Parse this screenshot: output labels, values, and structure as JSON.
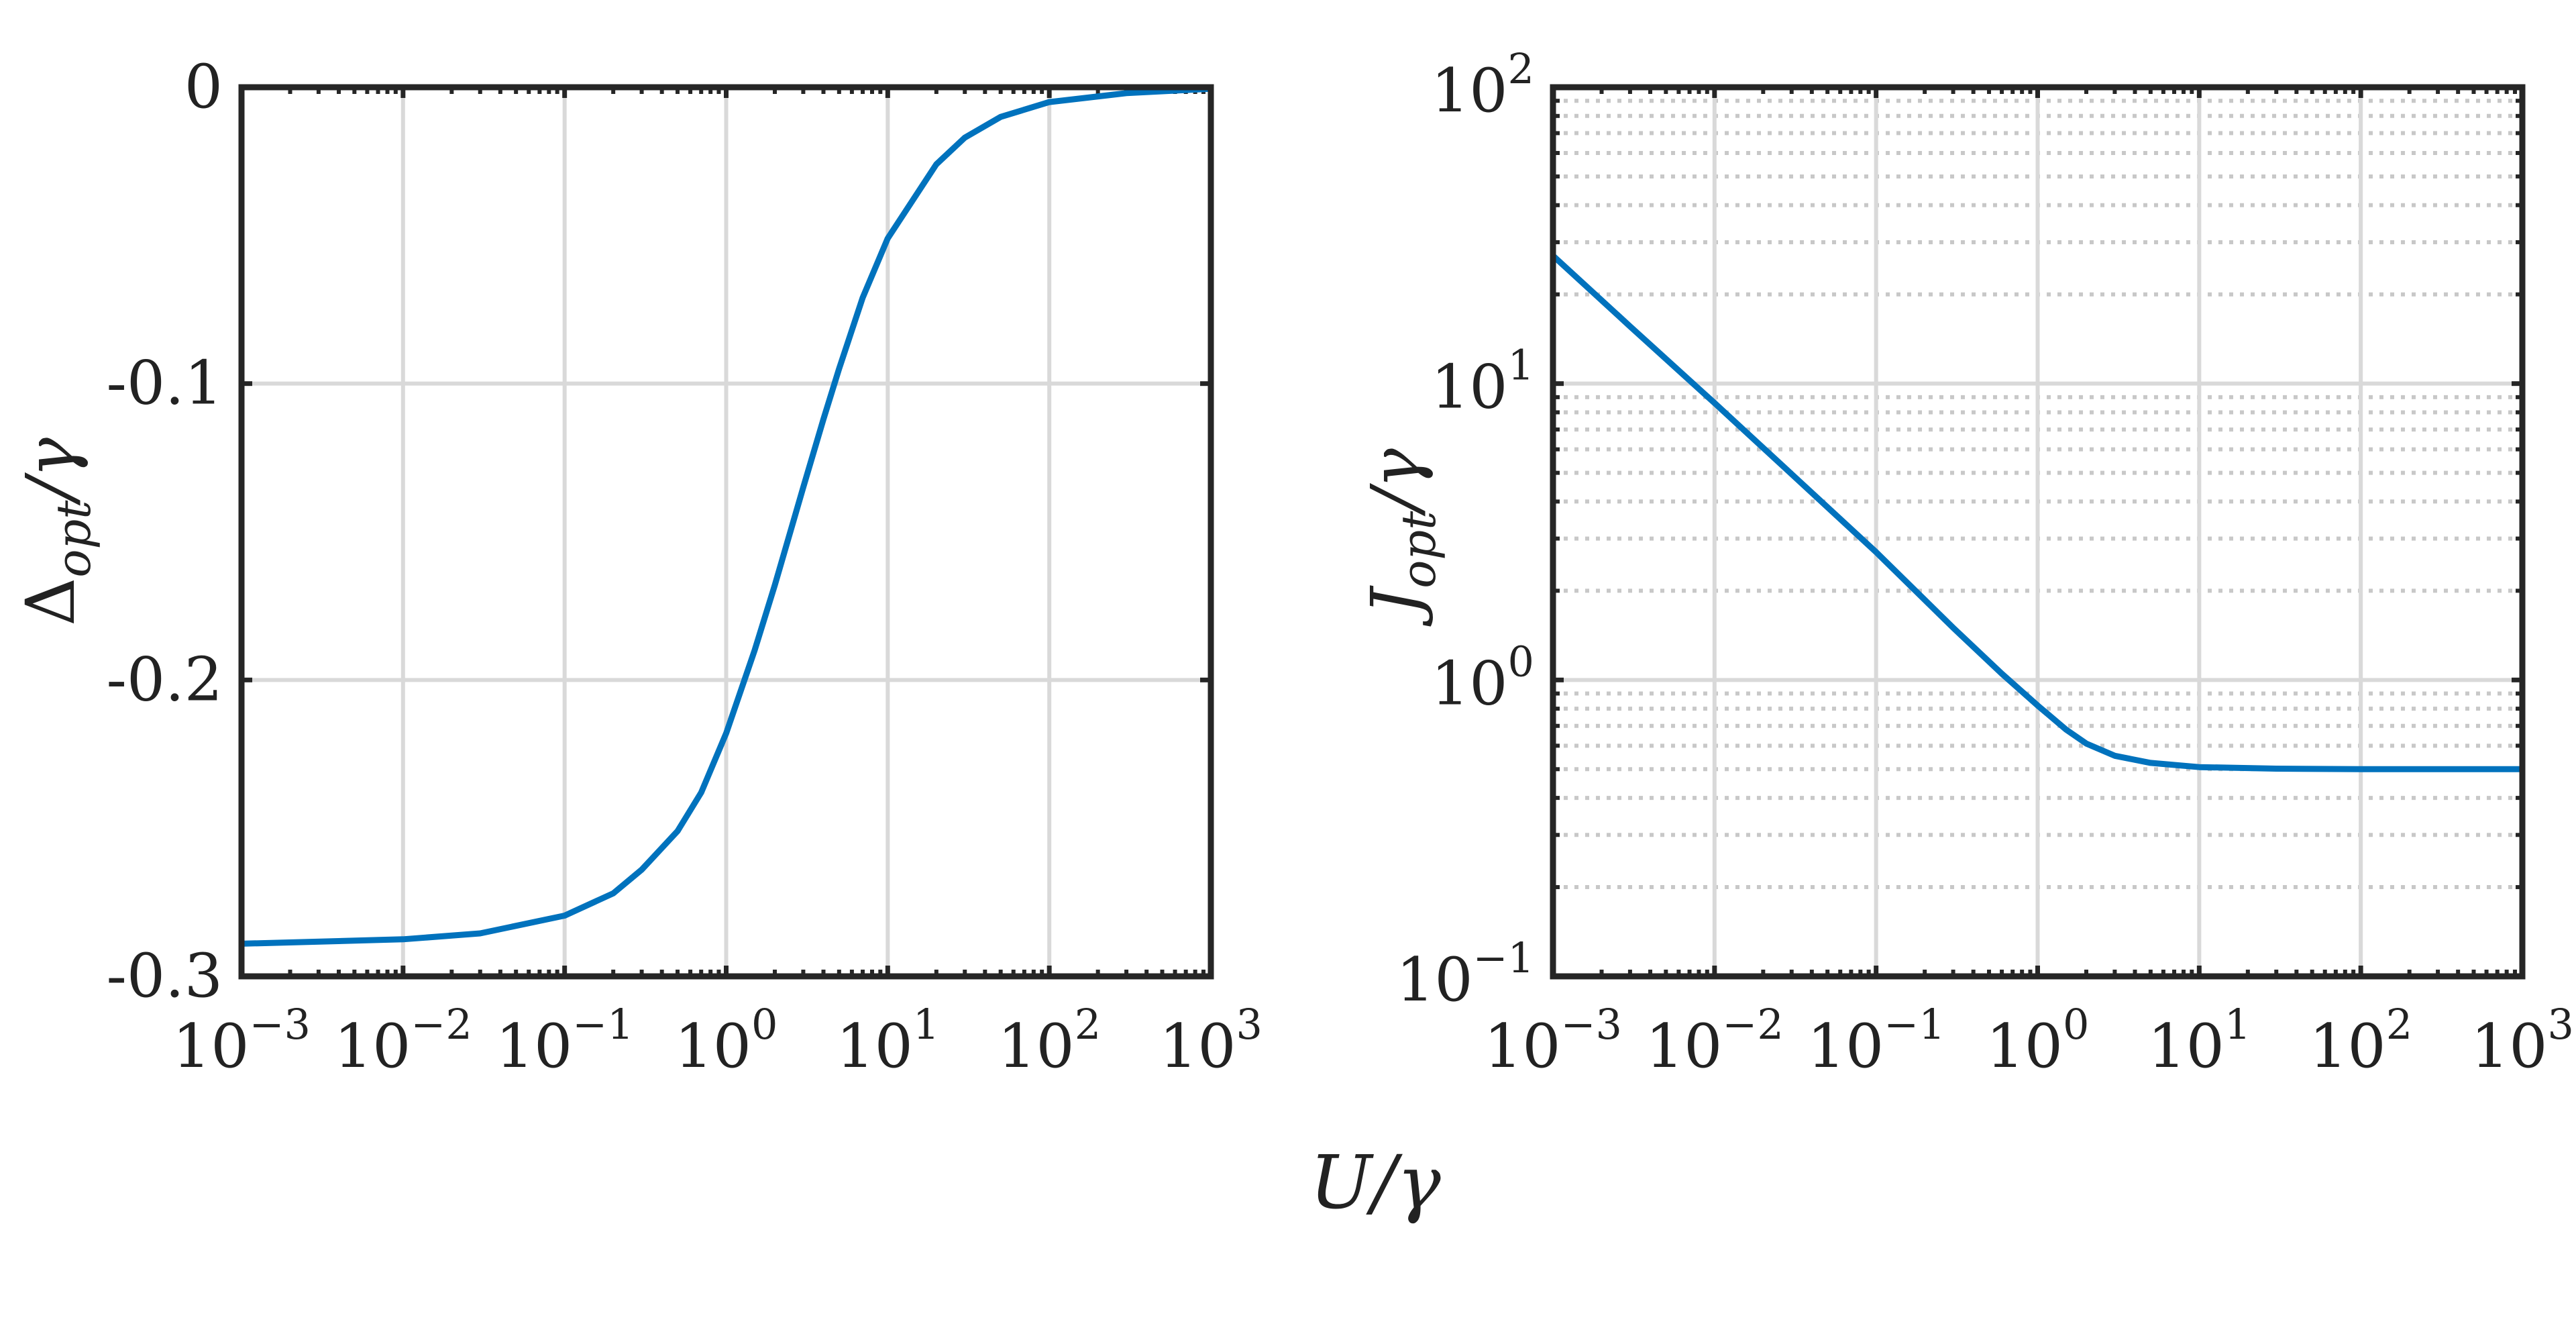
{
  "figure": {
    "shared_xlabel": "U/γ",
    "line_color": "#0072BD",
    "frame_color": "#262626",
    "grid_color": "#d9d9d9"
  },
  "chart_data": [
    {
      "type": "line",
      "ylabel": "Δopt/γ",
      "ylabel_main": "Δ",
      "ylabel_sub": "opt",
      "ylabel_tail": "/γ",
      "xscale": "log",
      "yscale": "linear",
      "xlim": [
        0.001,
        1000
      ],
      "ylim": [
        -0.3,
        0
      ],
      "grid": true,
      "x_ticks": [
        {
          "value": 0.001,
          "base": "10",
          "exp": "−3"
        },
        {
          "value": 0.01,
          "base": "10",
          "exp": "−2"
        },
        {
          "value": 0.1,
          "base": "10",
          "exp": "−1"
        },
        {
          "value": 1,
          "base": "10",
          "exp": "0"
        },
        {
          "value": 10,
          "base": "10",
          "exp": "1"
        },
        {
          "value": 100,
          "base": "10",
          "exp": "2"
        },
        {
          "value": 1000,
          "base": "10",
          "exp": "3"
        }
      ],
      "y_ticks": [
        {
          "value": 0,
          "label": "0"
        },
        {
          "value": -0.1,
          "label": "-0.1"
        },
        {
          "value": -0.2,
          "label": "-0.2"
        },
        {
          "value": -0.3,
          "label": "-0.3"
        }
      ],
      "series": [
        {
          "x": [
            0.001,
            0.01,
            0.03,
            0.1,
            0.2,
            0.3,
            0.5,
            0.7,
            1,
            1.5,
            2,
            3,
            4,
            5,
            7,
            10,
            20,
            30,
            50,
            100,
            300,
            1000
          ],
          "y": [
            -0.289,
            -0.2875,
            -0.2855,
            -0.2795,
            -0.272,
            -0.264,
            -0.251,
            -0.238,
            -0.218,
            -0.19,
            -0.168,
            -0.135,
            -0.112,
            -0.095,
            -0.071,
            -0.051,
            -0.026,
            -0.017,
            -0.01,
            -0.005,
            -0.002,
            -0.0005
          ]
        }
      ]
    },
    {
      "type": "line",
      "ylabel": "Jopt/γ",
      "ylabel_main": "J",
      "ylabel_sub": "opt",
      "ylabel_tail": "/γ",
      "xscale": "log",
      "yscale": "log",
      "xlim": [
        0.001,
        1000
      ],
      "ylim": [
        0.1,
        100
      ],
      "grid": true,
      "minor_grid": true,
      "x_ticks": [
        {
          "value": 0.001,
          "base": "10",
          "exp": "−3"
        },
        {
          "value": 0.01,
          "base": "10",
          "exp": "−2"
        },
        {
          "value": 0.1,
          "base": "10",
          "exp": "−1"
        },
        {
          "value": 1,
          "base": "10",
          "exp": "0"
        },
        {
          "value": 10,
          "base": "10",
          "exp": "1"
        },
        {
          "value": 100,
          "base": "10",
          "exp": "2"
        },
        {
          "value": 1000,
          "base": "10",
          "exp": "3"
        }
      ],
      "y_ticks": [
        {
          "value": 0.1,
          "base": "10",
          "exp": "−1"
        },
        {
          "value": 1,
          "base": "10",
          "exp": "0"
        },
        {
          "value": 10,
          "base": "10",
          "exp": "1"
        },
        {
          "value": 100,
          "base": "10",
          "exp": "2"
        }
      ],
      "series": [
        {
          "x": [
            0.001,
            0.003,
            0.01,
            0.03,
            0.1,
            0.3,
            0.6,
            1,
            1.5,
            2,
            3,
            5,
            10,
            30,
            100,
            1000
          ],
          "y": [
            27,
            15.6,
            8.6,
            4.95,
            2.7,
            1.5,
            1.05,
            0.82,
            0.68,
            0.61,
            0.555,
            0.525,
            0.508,
            0.502,
            0.5,
            0.5
          ]
        }
      ]
    }
  ]
}
